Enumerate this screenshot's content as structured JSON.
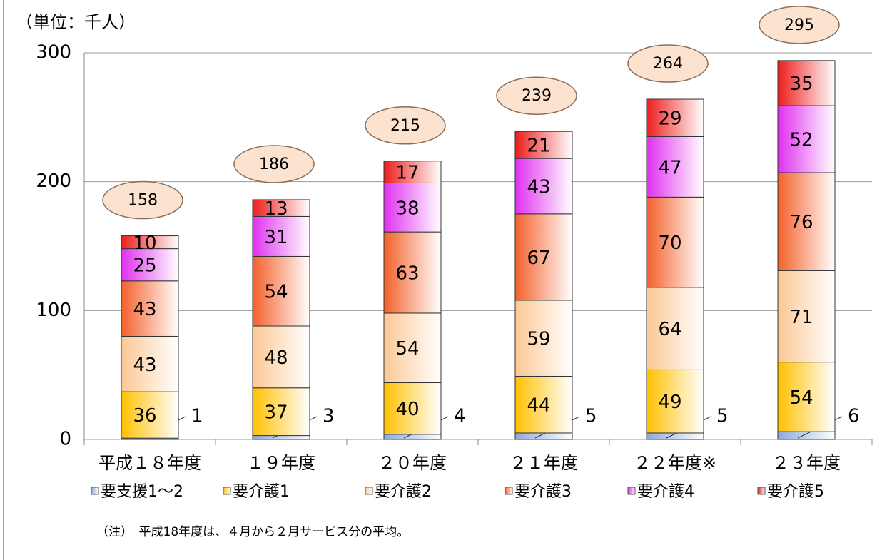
{
  "chart_data": {
    "type": "stacked-bar",
    "unit_label": "（単位：千人）",
    "categories": [
      "平成１８年度",
      "１９年度",
      "２０年度",
      "２１年度",
      "２２年度※",
      "２３年度"
    ],
    "series": [
      {
        "name": "要支援1～2",
        "color": "#8eaadb",
        "values": [
          1,
          3,
          4,
          5,
          5,
          6
        ]
      },
      {
        "name": "要介護1",
        "color": "#ffc000",
        "values": [
          36,
          37,
          40,
          44,
          49,
          54
        ]
      },
      {
        "name": "要介護2",
        "color": "#fbc894",
        "values": [
          43,
          48,
          54,
          59,
          64,
          71
        ]
      },
      {
        "name": "要介護3",
        "color": "#f4602a",
        "values": [
          43,
          54,
          63,
          67,
          70,
          76
        ]
      },
      {
        "name": "要介護4",
        "color": "#e030f0",
        "values": [
          25,
          31,
          38,
          43,
          47,
          52
        ]
      },
      {
        "name": "要介護5",
        "color": "#ee1c1c",
        "values": [
          10,
          13,
          17,
          21,
          29,
          35
        ]
      }
    ],
    "totals": [
      158,
      186,
      215,
      239,
      264,
      295
    ],
    "ylim": [
      0,
      300
    ],
    "yticks": [
      0,
      100,
      200,
      300
    ],
    "grid": true,
    "note": "（注）　平成18年度は、４月から２月サービス分の平均。"
  }
}
